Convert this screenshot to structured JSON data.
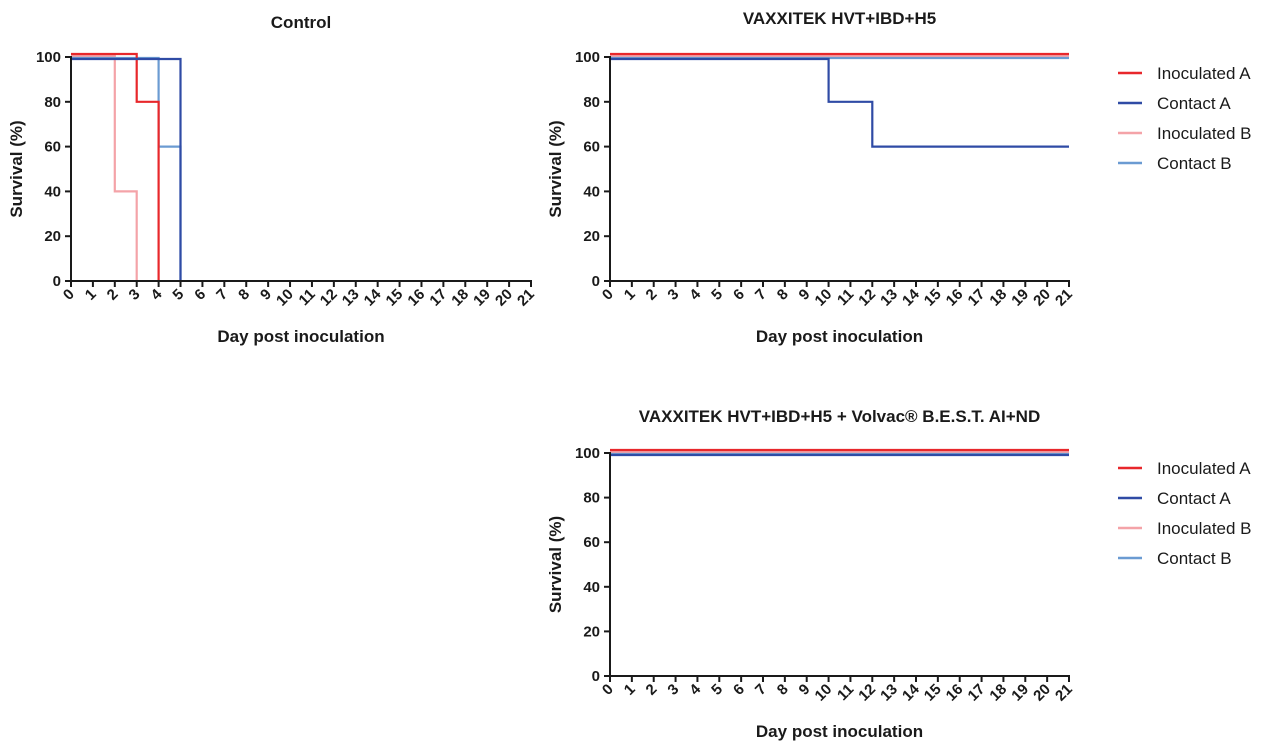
{
  "colors": {
    "inoculated_a": "#e8272b",
    "contact_a": "#2f4ba5",
    "inoculated_b": "#f4a3a8",
    "contact_b": "#6b9bd2"
  },
  "chart_data": [
    {
      "type": "line",
      "step": true,
      "title": "Control",
      "xlabel": "Day post inoculation",
      "ylabel": "Survival (%)",
      "xlim": [
        0,
        21
      ],
      "ylim": [
        0,
        100
      ],
      "xticks": [
        "0",
        "1",
        "2",
        "3",
        "4",
        "5",
        "6",
        "7",
        "8",
        "9",
        "10",
        "11",
        "12",
        "13",
        "14",
        "15",
        "16",
        "17",
        "18",
        "19",
        "20",
        "21"
      ],
      "yticks": [
        "0",
        "20",
        "40",
        "60",
        "80",
        "100"
      ],
      "legend": false,
      "series": [
        {
          "name": "Inoculated B",
          "color_key": "inoculated_b",
          "points": [
            [
              0,
              100
            ],
            [
              2,
              100
            ],
            [
              2,
              40
            ],
            [
              3,
              40
            ],
            [
              3,
              0
            ]
          ]
        },
        {
          "name": "Contact B",
          "color_key": "contact_b",
          "points": [
            [
              0,
              100
            ],
            [
              4,
              100
            ],
            [
              4,
              60
            ],
            [
              5,
              60
            ],
            [
              5,
              0
            ]
          ]
        },
        {
          "name": "Inoculated A",
          "color_key": "inoculated_a",
          "points": [
            [
              0,
              100
            ],
            [
              3,
              100
            ],
            [
              3,
              80
            ],
            [
              4,
              80
            ],
            [
              4,
              0
            ]
          ]
        },
        {
          "name": "Contact A",
          "color_key": "contact_a",
          "points": [
            [
              0,
              100
            ],
            [
              5,
              100
            ],
            [
              5,
              0
            ]
          ]
        }
      ]
    },
    {
      "type": "line",
      "step": true,
      "title": "VAXXITEK HVT+IBD+H5",
      "xlabel": "Day post inoculation",
      "ylabel": "Survival (%)",
      "xlim": [
        0,
        21
      ],
      "ylim": [
        0,
        100
      ],
      "xticks": [
        "0",
        "1",
        "2",
        "3",
        "4",
        "5",
        "6",
        "7",
        "8",
        "9",
        "10",
        "11",
        "12",
        "13",
        "14",
        "15",
        "16",
        "17",
        "18",
        "19",
        "20",
        "21"
      ],
      "yticks": [
        "0",
        "20",
        "40",
        "60",
        "80",
        "100"
      ],
      "legend": true,
      "legend_entries": [
        "Inoculated A",
        "Contact A",
        "Inoculated B",
        "Contact B"
      ],
      "series": [
        {
          "name": "Inoculated B",
          "color_key": "inoculated_b",
          "points": [
            [
              0,
              100
            ],
            [
              21,
              100
            ]
          ]
        },
        {
          "name": "Contact B",
          "color_key": "contact_b",
          "points": [
            [
              0,
              100
            ],
            [
              21,
              100
            ]
          ]
        },
        {
          "name": "Inoculated A",
          "color_key": "inoculated_a",
          "points": [
            [
              0,
              100
            ],
            [
              21,
              100
            ]
          ]
        },
        {
          "name": "Contact A",
          "color_key": "contact_a",
          "points": [
            [
              0,
              100
            ],
            [
              10,
              100
            ],
            [
              10,
              80
            ],
            [
              12,
              80
            ],
            [
              12,
              60
            ],
            [
              21,
              60
            ]
          ]
        }
      ]
    },
    {
      "type": "line",
      "step": true,
      "title": "VAXXITEK HVT+IBD+H5 + Volvac® B.E.S.T. AI+ND",
      "xlabel": "Day post inoculation",
      "ylabel": "Survival (%)",
      "xlim": [
        0,
        21
      ],
      "ylim": [
        0,
        100
      ],
      "xticks": [
        "0",
        "1",
        "2",
        "3",
        "4",
        "5",
        "6",
        "7",
        "8",
        "9",
        "10",
        "11",
        "12",
        "13",
        "14",
        "15",
        "16",
        "17",
        "18",
        "19",
        "20",
        "21"
      ],
      "yticks": [
        "0",
        "20",
        "40",
        "60",
        "80",
        "100"
      ],
      "legend": true,
      "legend_entries": [
        "Inoculated A",
        "Contact A",
        "Inoculated B",
        "Contact B"
      ],
      "series": [
        {
          "name": "Inoculated B",
          "color_key": "inoculated_b",
          "points": [
            [
              0,
              100
            ],
            [
              21,
              100
            ]
          ]
        },
        {
          "name": "Contact B",
          "color_key": "contact_b",
          "points": [
            [
              0,
              100
            ],
            [
              21,
              100
            ]
          ]
        },
        {
          "name": "Inoculated A",
          "color_key": "inoculated_a",
          "points": [
            [
              0,
              100
            ],
            [
              21,
              100
            ]
          ]
        },
        {
          "name": "Contact A",
          "color_key": "contact_a",
          "points": [
            [
              0,
              100
            ],
            [
              21,
              100
            ]
          ]
        }
      ]
    }
  ]
}
